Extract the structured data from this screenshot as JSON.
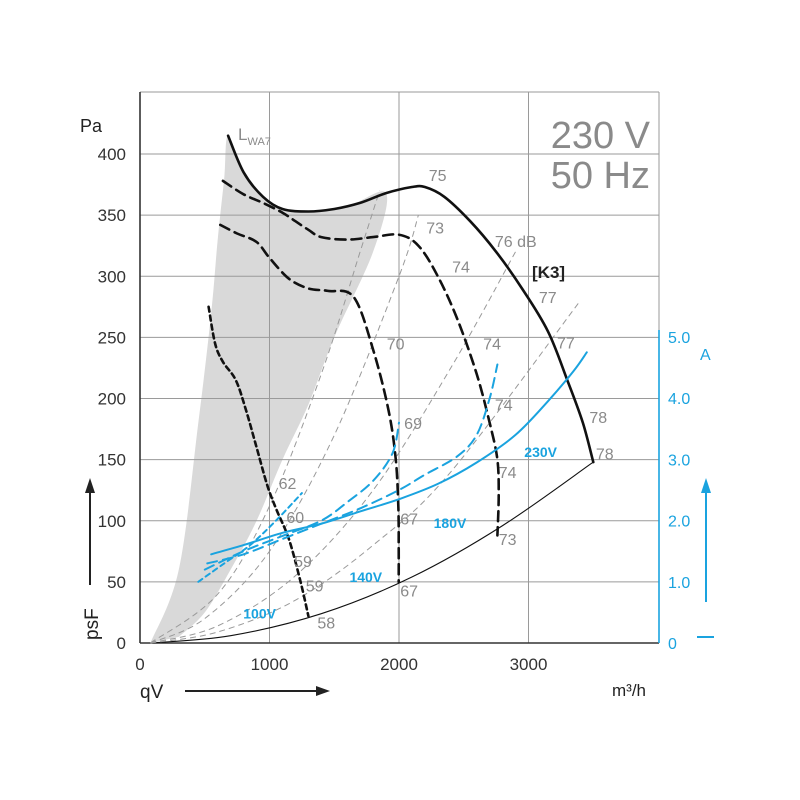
{
  "chart_data": {
    "type": "line",
    "title": "230 V",
    "subtitle": "50 Hz",
    "model_label": "[K3]",
    "xlabel": "qV",
    "xunit": "m³/h",
    "ylabel": "psF",
    "yunit": "Pa",
    "y2unit": "A",
    "lwa_label": "LWA7",
    "xlim": [
      0,
      4000
    ],
    "ylim": [
      0,
      400
    ],
    "y2lim": [
      0,
      5.0
    ],
    "x_ticks": [
      "0",
      "1000",
      "2000",
      "3000"
    ],
    "y_ticks": [
      "0",
      "50",
      "100",
      "150",
      "200",
      "250",
      "300",
      "350",
      "400"
    ],
    "y2_ticks": [
      "0",
      "1.0",
      "2.0",
      "3.0",
      "4.0",
      "5.0"
    ],
    "grid": true,
    "colors": {
      "pressure": "#111111",
      "current": "#1aa3df",
      "iso": "#9a9a9a",
      "shade": "#d9d9d9"
    },
    "voltage_labels": [
      {
        "text": "230V",
        "x": 3220,
        "y": 152
      },
      {
        "text": "180V",
        "x": 2520,
        "y": 94
      },
      {
        "text": "140V",
        "x": 1870,
        "y": 50
      },
      {
        "text": "100V",
        "x": 1050,
        "y": 20
      }
    ],
    "db_labels": [
      {
        "text": "75",
        "x": 2230,
        "y": 378
      },
      {
        "text": "73",
        "x": 2210,
        "y": 335
      },
      {
        "text": "74",
        "x": 2410,
        "y": 303
      },
      {
        "text": "76 dB",
        "x": 2740,
        "y": 324
      },
      {
        "text": "77",
        "x": 3080,
        "y": 278
      },
      {
        "text": "77",
        "x": 3220,
        "y": 241
      },
      {
        "text": "78",
        "x": 3470,
        "y": 180
      },
      {
        "text": "78",
        "x": 3520,
        "y": 150
      },
      {
        "text": "70",
        "x": 1905,
        "y": 240
      },
      {
        "text": "74",
        "x": 2650,
        "y": 240
      },
      {
        "text": "74",
        "x": 2740,
        "y": 190
      },
      {
        "text": "74",
        "x": 2770,
        "y": 135
      },
      {
        "text": "73",
        "x": 2770,
        "y": 80
      },
      {
        "text": "69",
        "x": 2040,
        "y": 175
      },
      {
        "text": "67",
        "x": 2010,
        "y": 97
      },
      {
        "text": "67",
        "x": 2010,
        "y": 38
      },
      {
        "text": "62",
        "x": 1070,
        "y": 126
      },
      {
        "text": "60",
        "x": 1130,
        "y": 98
      },
      {
        "text": "59",
        "x": 1190,
        "y": 62
      },
      {
        "text": "59",
        "x": 1280,
        "y": 42
      },
      {
        "text": "58",
        "x": 1370,
        "y": 12
      }
    ],
    "series": [
      {
        "name": "230V",
        "style": "solid",
        "axis": "pressure",
        "x": [
          680,
          800,
          950,
          1100,
          1300,
          1500,
          1700,
          1900,
          2100,
          2200,
          2350,
          2550,
          2750,
          2950,
          3150,
          3300,
          3420,
          3500
        ],
        "y": [
          415,
          385,
          365,
          355,
          353,
          355,
          360,
          368,
          373,
          373,
          365,
          345,
          320,
          290,
          255,
          215,
          180,
          148
        ]
      },
      {
        "name": "180V",
        "style": "dashed",
        "axis": "pressure",
        "x": [
          640,
          800,
          950,
          1100,
          1200,
          1300,
          1400,
          1600,
          1800,
          2000,
          2150,
          2300,
          2450,
          2600,
          2700,
          2760,
          2770,
          2760
        ],
        "y": [
          378,
          367,
          360,
          352,
          345,
          338,
          332,
          330,
          332,
          334,
          325,
          300,
          265,
          220,
          180,
          150,
          120,
          88
        ]
      },
      {
        "name": "140V",
        "style": "dashed",
        "axis": "pressure",
        "x": [
          620,
          750,
          900,
          1000,
          1150,
          1300,
          1450,
          1650,
          1800,
          1920,
          1975,
          1995,
          1998,
          1998
        ],
        "y": [
          342,
          335,
          328,
          315,
          298,
          290,
          288,
          283,
          240,
          190,
          150,
          110,
          80,
          50
        ]
      },
      {
        "name": "100V",
        "style": "dotted",
        "axis": "pressure",
        "x": [
          530,
          580,
          640,
          740,
          820,
          900,
          980,
          1050,
          1150,
          1240,
          1300
        ],
        "y": [
          275,
          245,
          230,
          215,
          190,
          160,
          130,
          110,
          85,
          50,
          22
        ]
      },
      {
        "name": "230V",
        "style": "solid",
        "axis": "current",
        "x": [
          550,
          800,
          1100,
          1400,
          1700,
          2000,
          2300,
          2600,
          2900,
          3150,
          3350,
          3450
        ],
        "y": [
          1.45,
          1.6,
          1.8,
          1.95,
          2.15,
          2.35,
          2.6,
          2.95,
          3.4,
          3.95,
          4.45,
          4.75
        ]
      },
      {
        "name": "180V",
        "style": "dashed",
        "axis": "current",
        "x": [
          520,
          800,
          1100,
          1400,
          1700,
          2000,
          2200,
          2450,
          2600,
          2700,
          2760
        ],
        "y": [
          1.3,
          1.45,
          1.7,
          1.95,
          2.2,
          2.5,
          2.75,
          3.05,
          3.4,
          4.0,
          4.55
        ]
      },
      {
        "name": "140V",
        "style": "dashed",
        "axis": "current",
        "x": [
          500,
          800,
          1100,
          1400,
          1600,
          1800,
          1950,
          2000
        ],
        "y": [
          1.2,
          1.5,
          1.75,
          2.0,
          2.3,
          2.65,
          3.1,
          3.6
        ]
      },
      {
        "name": "100V",
        "style": "dotted",
        "axis": "current",
        "x": [
          450,
          650,
          850,
          1050,
          1250
        ],
        "y": [
          1.0,
          1.3,
          1.6,
          2.0,
          2.45
        ]
      }
    ],
    "system_curves": [
      {
        "style": "solid",
        "x": [
          80,
          700,
          1400,
          2100,
          2800,
          3500
        ],
        "y": [
          0,
          6,
          24,
          54,
          96,
          148
        ]
      },
      {
        "style": "dashed",
        "x": [
          80,
          600,
          1200,
          1800,
          2400,
          2900
        ],
        "y": [
          0,
          14,
          55,
          125,
          225,
          320
        ]
      },
      {
        "style": "dashed",
        "x": [
          80,
          600,
          1200,
          1800,
          2400,
          3400
        ],
        "y": [
          0,
          9,
          35,
          80,
          140,
          280
        ]
      },
      {
        "style": "dashed",
        "x": [
          80,
          500,
          1000,
          1500,
          2000,
          2150
        ],
        "y": [
          0,
          20,
          75,
          170,
          300,
          350
        ]
      },
      {
        "style": "dashed",
        "x": [
          80,
          600,
          1000,
          1400,
          1700,
          1850
        ],
        "y": [
          0,
          40,
          112,
          220,
          320,
          370
        ]
      }
    ],
    "unstable_zone": {
      "x": [
        80,
        300,
        450,
        550,
        600,
        650,
        680,
        800,
        1000,
        1300,
        1600,
        1900,
        1800,
        1500,
        1300,
        1100,
        900,
        700,
        500,
        300
      ],
      "y": [
        0,
        60,
        180,
        270,
        330,
        380,
        415,
        385,
        360,
        353,
        357,
        368,
        320,
        250,
        195,
        150,
        100,
        60,
        25,
        5
      ]
    }
  }
}
